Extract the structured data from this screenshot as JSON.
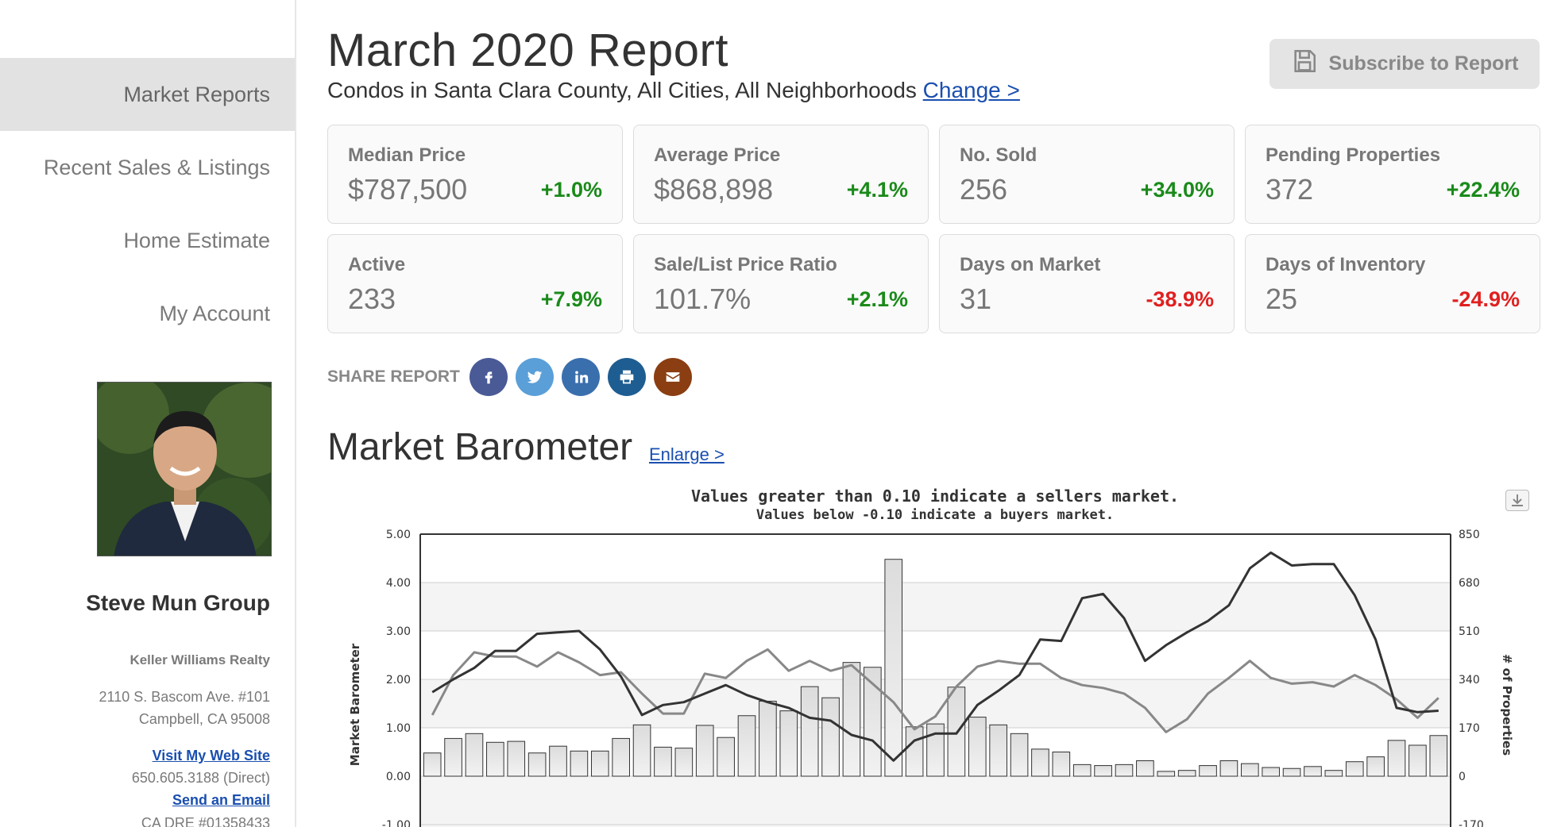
{
  "sidebar": {
    "items": [
      {
        "label": "Market Reports",
        "active": true
      },
      {
        "label": "Recent Sales & Listings",
        "active": false
      },
      {
        "label": "Home Estimate",
        "active": false
      },
      {
        "label": "My Account",
        "active": false
      }
    ],
    "agent": {
      "name": "Steve Mun Group",
      "company": "Keller Williams Realty",
      "address_line1": "2110 S. Bascom Ave. #101",
      "address_line2": "Campbell, CA 95008",
      "website_link": "Visit My Web Site",
      "phone": "650.605.3188  (Direct)",
      "email_link": "Send an Email",
      "license": "CA DRE #01358433"
    }
  },
  "header": {
    "title": "March 2020 Report",
    "subtitle": "Condos in Santa Clara County, All Cities, All Neighborhoods",
    "change_link": "Change >",
    "subscribe_label": "Subscribe to Report",
    "subscribe_icon": "save-icon"
  },
  "stats": [
    {
      "label": "Median Price",
      "value": "$787,500",
      "change": "+1.0%",
      "trend": "up"
    },
    {
      "label": "Average Price",
      "value": "$868,898",
      "change": "+4.1%",
      "trend": "up"
    },
    {
      "label": "No. Sold",
      "value": "256",
      "change": "+34.0%",
      "trend": "up"
    },
    {
      "label": "Pending Properties",
      "value": "372",
      "change": "+22.4%",
      "trend": "up"
    },
    {
      "label": "Active",
      "value": "233",
      "change": "+7.9%",
      "trend": "up"
    },
    {
      "label": "Sale/List Price Ratio",
      "value": "101.7%",
      "change": "+2.1%",
      "trend": "up"
    },
    {
      "label": "Days on Market",
      "value": "31",
      "change": "-38.9%",
      "trend": "down"
    },
    {
      "label": "Days of Inventory",
      "value": "25",
      "change": "-24.9%",
      "trend": "down"
    }
  ],
  "share": {
    "label": "SHARE REPORT",
    "buttons": [
      {
        "icon": "facebook-icon",
        "color": "#3b5998"
      },
      {
        "icon": "twitter-icon",
        "color": "#55acee"
      },
      {
        "icon": "linkedin-icon",
        "color": "#2d6bb3"
      },
      {
        "icon": "print-icon",
        "color": "#1d5a94"
      },
      {
        "icon": "email-icon",
        "color": "#8a3e12"
      }
    ]
  },
  "barometer": {
    "title": "Market Barometer",
    "enlarge_link": "Enlarge >"
  },
  "chart_data": {
    "type": "bar",
    "title": "Values greater than 0.10 indicate a sellers market.",
    "subtitle": "Values below -0.10 indicate a buyers market.",
    "ylabel": "Market Barometer",
    "y2label": "# of Properties",
    "ylim": [
      -1,
      5
    ],
    "y2lim": [
      -170,
      850
    ],
    "yticks": [
      "5.00",
      "4.00",
      "3.00",
      "2.00",
      "1.00",
      "0.00",
      "-1.00"
    ],
    "y2ticks": [
      "850",
      "680",
      "510",
      "340",
      "170",
      "0",
      "-170"
    ],
    "grid": true,
    "series": [
      {
        "name": "",
        "kind": "bar",
        "axis": "left",
        "values": [
          0.48,
          0.78,
          0.88,
          0.7,
          0.72,
          0.48,
          0.62,
          0.52,
          0.52,
          0.78,
          1.06,
          0.6,
          0.58,
          1.05,
          0.8,
          1.25,
          1.55,
          1.35,
          1.85,
          1.62,
          2.35,
          2.25,
          4.48,
          1.02,
          1.08,
          1.84,
          1.22,
          1.06,
          0.88,
          0.56,
          0.5,
          0.24,
          0.22,
          0.24,
          0.32,
          0.1,
          0.12,
          0.22,
          0.32,
          0.26,
          0.18,
          0.16,
          0.2,
          0.12,
          0.3,
          0.4,
          0.74,
          0.64,
          0.84
        ]
      },
      {
        "name": "",
        "kind": "line",
        "axis": "right",
        "color": "#333333",
        "values": [
          295,
          340,
          380,
          440,
          440,
          500,
          505,
          510,
          445,
          350,
          215,
          250,
          260,
          290,
          320,
          285,
          260,
          240,
          205,
          195,
          145,
          125,
          55,
          125,
          150,
          150,
          250,
          300,
          355,
          480,
          475,
          625,
          640,
          555,
          405,
          460,
          505,
          545,
          600,
          730,
          785,
          740,
          745,
          745,
          635,
          480,
          240,
          225,
          230
        ]
      },
      {
        "name": "",
        "kind": "line",
        "axis": "right",
        "color": "#888888",
        "values": [
          215,
          355,
          435,
          420,
          420,
          385,
          435,
          400,
          355,
          365,
          290,
          220,
          220,
          360,
          345,
          405,
          445,
          370,
          405,
          370,
          390,
          325,
          260,
          165,
          210,
          315,
          385,
          405,
          395,
          395,
          345,
          320,
          310,
          290,
          240,
          155,
          200,
          290,
          345,
          405,
          345,
          325,
          330,
          315,
          355,
          320,
          270,
          205,
          275
        ]
      }
    ]
  }
}
